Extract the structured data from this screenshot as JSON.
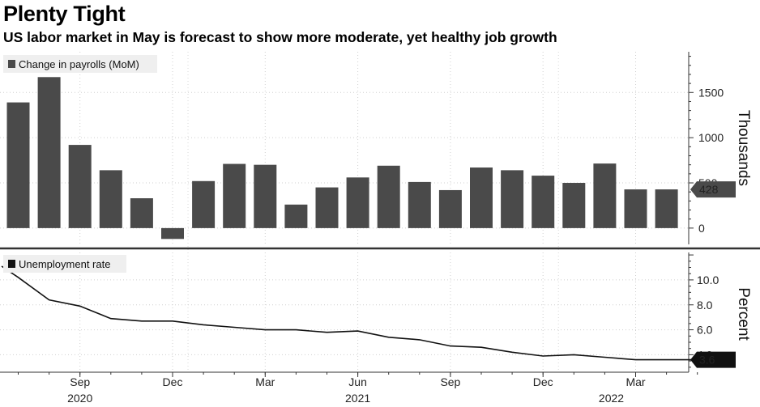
{
  "title": "Plenty Tight",
  "subtitle": "US labor market in May is forecast to show more moderate, yet healthy job growth",
  "chart_data": [
    {
      "type": "bar",
      "legend": "Change in payrolls (MoM)",
      "legend_position": "top-left",
      "ylabel": "Thousands",
      "ylim": [
        -180,
        1950
      ],
      "yticks": [
        0,
        500,
        1000,
        1500
      ],
      "grid": true,
      "categories": [
        "2020-07",
        "2020-08",
        "2020-09",
        "2020-10",
        "2020-11",
        "2020-12",
        "2021-01",
        "2021-02",
        "2021-03",
        "2021-04",
        "2021-05",
        "2021-06",
        "2021-07",
        "2021-08",
        "2021-09",
        "2021-10",
        "2021-11",
        "2021-12",
        "2022-01",
        "2022-02",
        "2022-03",
        "2022-04"
      ],
      "values": [
        1390,
        1670,
        920,
        640,
        330,
        -120,
        520,
        710,
        700,
        260,
        450,
        560,
        690,
        510,
        420,
        670,
        640,
        580,
        500,
        714,
        428,
        428
      ],
      "last_value_label": "428",
      "color": "#4a4a4a"
    },
    {
      "type": "line",
      "legend": "Unemployment rate",
      "legend_position": "top-left",
      "ylabel": "Percent",
      "ylim": [
        2.6,
        12.2
      ],
      "yticks": [
        4.0,
        6.0,
        8.0,
        10.0
      ],
      "grid": true,
      "x": [
        "2020-06",
        "2020-07",
        "2020-08",
        "2020-09",
        "2020-10",
        "2020-11",
        "2020-12",
        "2021-01",
        "2021-02",
        "2021-03",
        "2021-04",
        "2021-05",
        "2021-06",
        "2021-07",
        "2021-08",
        "2021-09",
        "2021-10",
        "2021-11",
        "2021-12",
        "2022-01",
        "2022-02",
        "2022-03",
        "2022-04",
        "2022-05"
      ],
      "values": [
        11.1,
        10.2,
        8.4,
        7.9,
        6.9,
        6.7,
        6.7,
        6.4,
        6.2,
        6.0,
        6.0,
        5.8,
        5.9,
        5.4,
        5.2,
        4.7,
        4.6,
        4.2,
        3.9,
        4.0,
        3.8,
        3.6,
        3.6,
        3.6
      ],
      "last_value_label": "3.6",
      "color": "#111111"
    }
  ],
  "x_axis": {
    "months": [
      "Sep",
      "Dec",
      "Mar",
      "Jun",
      "Sep",
      "Dec",
      "Mar"
    ],
    "years": [
      "2020",
      "2021",
      "2022"
    ]
  }
}
